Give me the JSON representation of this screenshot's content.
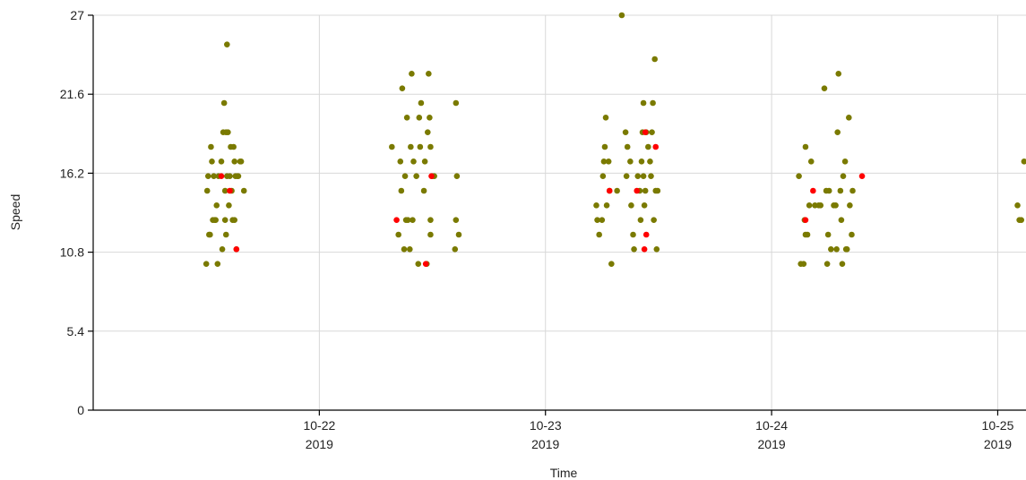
{
  "chart_data": {
    "type": "scatter",
    "xlabel": "Time",
    "ylabel": "Speed",
    "ylim": [
      0,
      27
    ],
    "xlim": [
      "2019-10-21T00:00",
      "2019-10-25T03:00"
    ],
    "y_ticks": [
      0,
      5.4,
      10.8,
      16.2,
      21.6,
      27
    ],
    "x_ticks": [
      {
        "date": "2019-10-22",
        "label_top": "10-22",
        "label_bottom": "2019"
      },
      {
        "date": "2019-10-23",
        "label_top": "10-23",
        "label_bottom": "2019"
      },
      {
        "date": "2019-10-24",
        "label_top": "10-24",
        "label_bottom": "2019"
      },
      {
        "date": "2019-10-25",
        "label_top": "10-25",
        "label_bottom": "2019"
      }
    ],
    "grid": true,
    "colors": {
      "normal": "#7a7a00",
      "highlight": "#ff0000"
    },
    "series": [
      {
        "color": "#7a7a00",
        "points": [
          [
            "2019-10-21T12:00",
            10
          ],
          [
            "2019-10-21T12:06",
            15
          ],
          [
            "2019-10-21T12:12",
            16
          ],
          [
            "2019-10-21T12:18",
            12
          ],
          [
            "2019-10-21T12:24",
            12
          ],
          [
            "2019-10-21T12:30",
            18
          ],
          [
            "2019-10-21T12:36",
            17
          ],
          [
            "2019-10-21T12:42",
            13
          ],
          [
            "2019-10-21T12:48",
            16
          ],
          [
            "2019-10-21T12:54",
            13
          ],
          [
            "2019-10-21T13:00",
            13
          ],
          [
            "2019-10-21T13:06",
            14
          ],
          [
            "2019-10-21T13:12",
            10
          ],
          [
            "2019-10-21T13:18",
            16
          ],
          [
            "2019-10-21T13:36",
            17
          ],
          [
            "2019-10-21T13:42",
            11
          ],
          [
            "2019-10-21T13:48",
            19
          ],
          [
            "2019-10-21T13:54",
            21
          ],
          [
            "2019-10-21T14:00",
            15
          ],
          [
            "2019-10-21T14:06",
            19
          ],
          [
            "2019-10-21T14:00",
            13
          ],
          [
            "2019-10-21T14:06",
            12
          ],
          [
            "2019-10-21T14:12",
            25
          ],
          [
            "2019-10-21T14:12",
            16
          ],
          [
            "2019-10-21T14:18",
            19
          ],
          [
            "2019-10-21T14:24",
            14
          ],
          [
            "2019-10-21T14:30",
            16
          ],
          [
            "2019-10-21T14:36",
            18
          ],
          [
            "2019-10-21T14:42",
            15
          ],
          [
            "2019-10-21T14:48",
            13
          ],
          [
            "2019-10-21T14:54",
            18
          ],
          [
            "2019-10-21T15:00",
            17
          ],
          [
            "2019-10-21T15:00",
            13
          ],
          [
            "2019-10-21T15:06",
            16
          ],
          [
            "2019-10-21T15:12",
            11
          ],
          [
            "2019-10-21T15:18",
            16
          ],
          [
            "2019-10-21T15:24",
            16
          ],
          [
            "2019-10-21T15:36",
            17
          ],
          [
            "2019-10-21T15:42",
            17
          ],
          [
            "2019-10-21T16:00",
            15
          ],
          [
            "2019-10-22T07:42",
            18
          ],
          [
            "2019-10-22T08:24",
            12
          ],
          [
            "2019-10-22T08:36",
            17
          ],
          [
            "2019-10-22T08:48",
            22
          ],
          [
            "2019-10-22T08:42",
            15
          ],
          [
            "2019-10-22T09:00",
            11
          ],
          [
            "2019-10-22T09:06",
            16
          ],
          [
            "2019-10-22T09:12",
            13
          ],
          [
            "2019-10-22T09:18",
            20
          ],
          [
            "2019-10-22T09:24",
            13
          ],
          [
            "2019-10-22T09:36",
            11
          ],
          [
            "2019-10-22T09:42",
            18
          ],
          [
            "2019-10-22T09:48",
            23
          ],
          [
            "2019-10-22T09:54",
            13
          ],
          [
            "2019-10-22T10:00",
            17
          ],
          [
            "2019-10-22T10:18",
            16
          ],
          [
            "2019-10-22T10:30",
            10
          ],
          [
            "2019-10-22T10:36",
            20
          ],
          [
            "2019-10-22T10:42",
            18
          ],
          [
            "2019-10-22T10:48",
            21
          ],
          [
            "2019-10-22T11:06",
            15
          ],
          [
            "2019-10-22T11:12",
            17
          ],
          [
            "2019-10-22T11:24",
            10
          ],
          [
            "2019-10-22T11:30",
            19
          ],
          [
            "2019-10-22T11:36",
            23
          ],
          [
            "2019-10-22T11:42",
            20
          ],
          [
            "2019-10-22T11:48",
            18
          ],
          [
            "2019-10-22T11:48",
            13
          ],
          [
            "2019-10-22T11:48",
            12
          ],
          [
            "2019-10-22T12:00",
            16
          ],
          [
            "2019-10-22T12:12",
            16
          ],
          [
            "2019-10-22T14:24",
            11
          ],
          [
            "2019-10-22T14:30",
            21
          ],
          [
            "2019-10-22T14:30",
            13
          ],
          [
            "2019-10-22T14:36",
            16
          ],
          [
            "2019-10-22T14:48",
            12
          ],
          [
            "2019-10-23T05:24",
            14
          ],
          [
            "2019-10-23T05:30",
            13
          ],
          [
            "2019-10-23T05:42",
            12
          ],
          [
            "2019-10-23T06:00",
            13
          ],
          [
            "2019-10-23T06:06",
            16
          ],
          [
            "2019-10-23T06:12",
            17
          ],
          [
            "2019-10-23T06:18",
            18
          ],
          [
            "2019-10-23T06:24",
            20
          ],
          [
            "2019-10-23T06:30",
            14
          ],
          [
            "2019-10-23T06:42",
            17
          ],
          [
            "2019-10-23T06:48",
            15
          ],
          [
            "2019-10-23T07:00",
            10
          ],
          [
            "2019-10-23T07:36",
            15
          ],
          [
            "2019-10-23T08:06",
            27
          ],
          [
            "2019-10-23T08:30",
            19
          ],
          [
            "2019-10-23T08:36",
            16
          ],
          [
            "2019-10-23T08:42",
            18
          ],
          [
            "2019-10-23T09:00",
            17
          ],
          [
            "2019-10-23T09:06",
            14
          ],
          [
            "2019-10-23T09:18",
            12
          ],
          [
            "2019-10-23T09:24",
            11
          ],
          [
            "2019-10-23T09:48",
            16
          ],
          [
            "2019-10-23T10:00",
            15
          ],
          [
            "2019-10-23T10:06",
            13
          ],
          [
            "2019-10-23T10:12",
            17
          ],
          [
            "2019-10-23T10:18",
            19
          ],
          [
            "2019-10-23T10:24",
            21
          ],
          [
            "2019-10-23T10:24",
            16
          ],
          [
            "2019-10-23T10:30",
            14
          ],
          [
            "2019-10-23T10:36",
            15
          ],
          [
            "2019-10-23T10:42",
            19
          ],
          [
            "2019-10-23T10:54",
            18
          ],
          [
            "2019-10-23T11:06",
            17
          ],
          [
            "2019-10-23T11:12",
            16
          ],
          [
            "2019-10-23T11:18",
            19
          ],
          [
            "2019-10-23T11:24",
            21
          ],
          [
            "2019-10-23T11:30",
            13
          ],
          [
            "2019-10-23T11:36",
            24
          ],
          [
            "2019-10-23T11:42",
            15
          ],
          [
            "2019-10-23T11:48",
            11
          ],
          [
            "2019-10-23T11:54",
            15
          ],
          [
            "2019-10-24T02:54",
            16
          ],
          [
            "2019-10-24T03:06",
            10
          ],
          [
            "2019-10-24T03:24",
            10
          ],
          [
            "2019-10-24T03:30",
            13
          ],
          [
            "2019-10-24T03:36",
            12
          ],
          [
            "2019-10-24T03:36",
            18
          ],
          [
            "2019-10-24T03:48",
            12
          ],
          [
            "2019-10-24T04:00",
            14
          ],
          [
            "2019-10-24T04:12",
            17
          ],
          [
            "2019-10-24T04:36",
            14
          ],
          [
            "2019-10-24T05:00",
            14
          ],
          [
            "2019-10-24T05:12",
            14
          ],
          [
            "2019-10-24T05:36",
            22
          ],
          [
            "2019-10-24T05:48",
            15
          ],
          [
            "2019-10-24T05:54",
            10
          ],
          [
            "2019-10-24T06:00",
            12
          ],
          [
            "2019-10-24T06:06",
            15
          ],
          [
            "2019-10-24T06:18",
            11
          ],
          [
            "2019-10-24T06:36",
            14
          ],
          [
            "2019-10-24T06:48",
            14
          ],
          [
            "2019-10-24T06:54",
            11
          ],
          [
            "2019-10-24T07:00",
            19
          ],
          [
            "2019-10-24T07:06",
            23
          ],
          [
            "2019-10-24T07:18",
            15
          ],
          [
            "2019-10-24T07:24",
            13
          ],
          [
            "2019-10-24T07:30",
            10
          ],
          [
            "2019-10-24T07:36",
            16
          ],
          [
            "2019-10-24T07:48",
            17
          ],
          [
            "2019-10-24T07:54",
            11
          ],
          [
            "2019-10-24T08:00",
            11
          ],
          [
            "2019-10-24T08:12",
            20
          ],
          [
            "2019-10-24T08:18",
            14
          ],
          [
            "2019-10-24T08:30",
            12
          ],
          [
            "2019-10-24T08:36",
            15
          ],
          [
            "2019-10-25T02:06",
            14
          ],
          [
            "2019-10-25T02:18",
            13
          ],
          [
            "2019-10-25T02:30",
            13
          ],
          [
            "2019-10-25T02:48",
            17
          ]
        ]
      },
      {
        "color": "#ff0000",
        "points": [
          [
            "2019-10-21T13:36",
            16
          ],
          [
            "2019-10-21T14:30",
            15
          ],
          [
            "2019-10-21T15:12",
            11
          ],
          [
            "2019-10-22T08:12",
            13
          ],
          [
            "2019-10-22T11:18",
            10
          ],
          [
            "2019-10-22T11:54",
            16
          ],
          [
            "2019-10-23T06:48",
            15
          ],
          [
            "2019-10-23T09:42",
            15
          ],
          [
            "2019-10-23T10:36",
            19
          ],
          [
            "2019-10-23T10:30",
            11
          ],
          [
            "2019-10-23T10:42",
            12
          ],
          [
            "2019-10-23T11:42",
            18
          ],
          [
            "2019-10-24T03:36",
            13
          ],
          [
            "2019-10-24T04:24",
            15
          ],
          [
            "2019-10-24T09:36",
            16
          ]
        ]
      }
    ]
  }
}
